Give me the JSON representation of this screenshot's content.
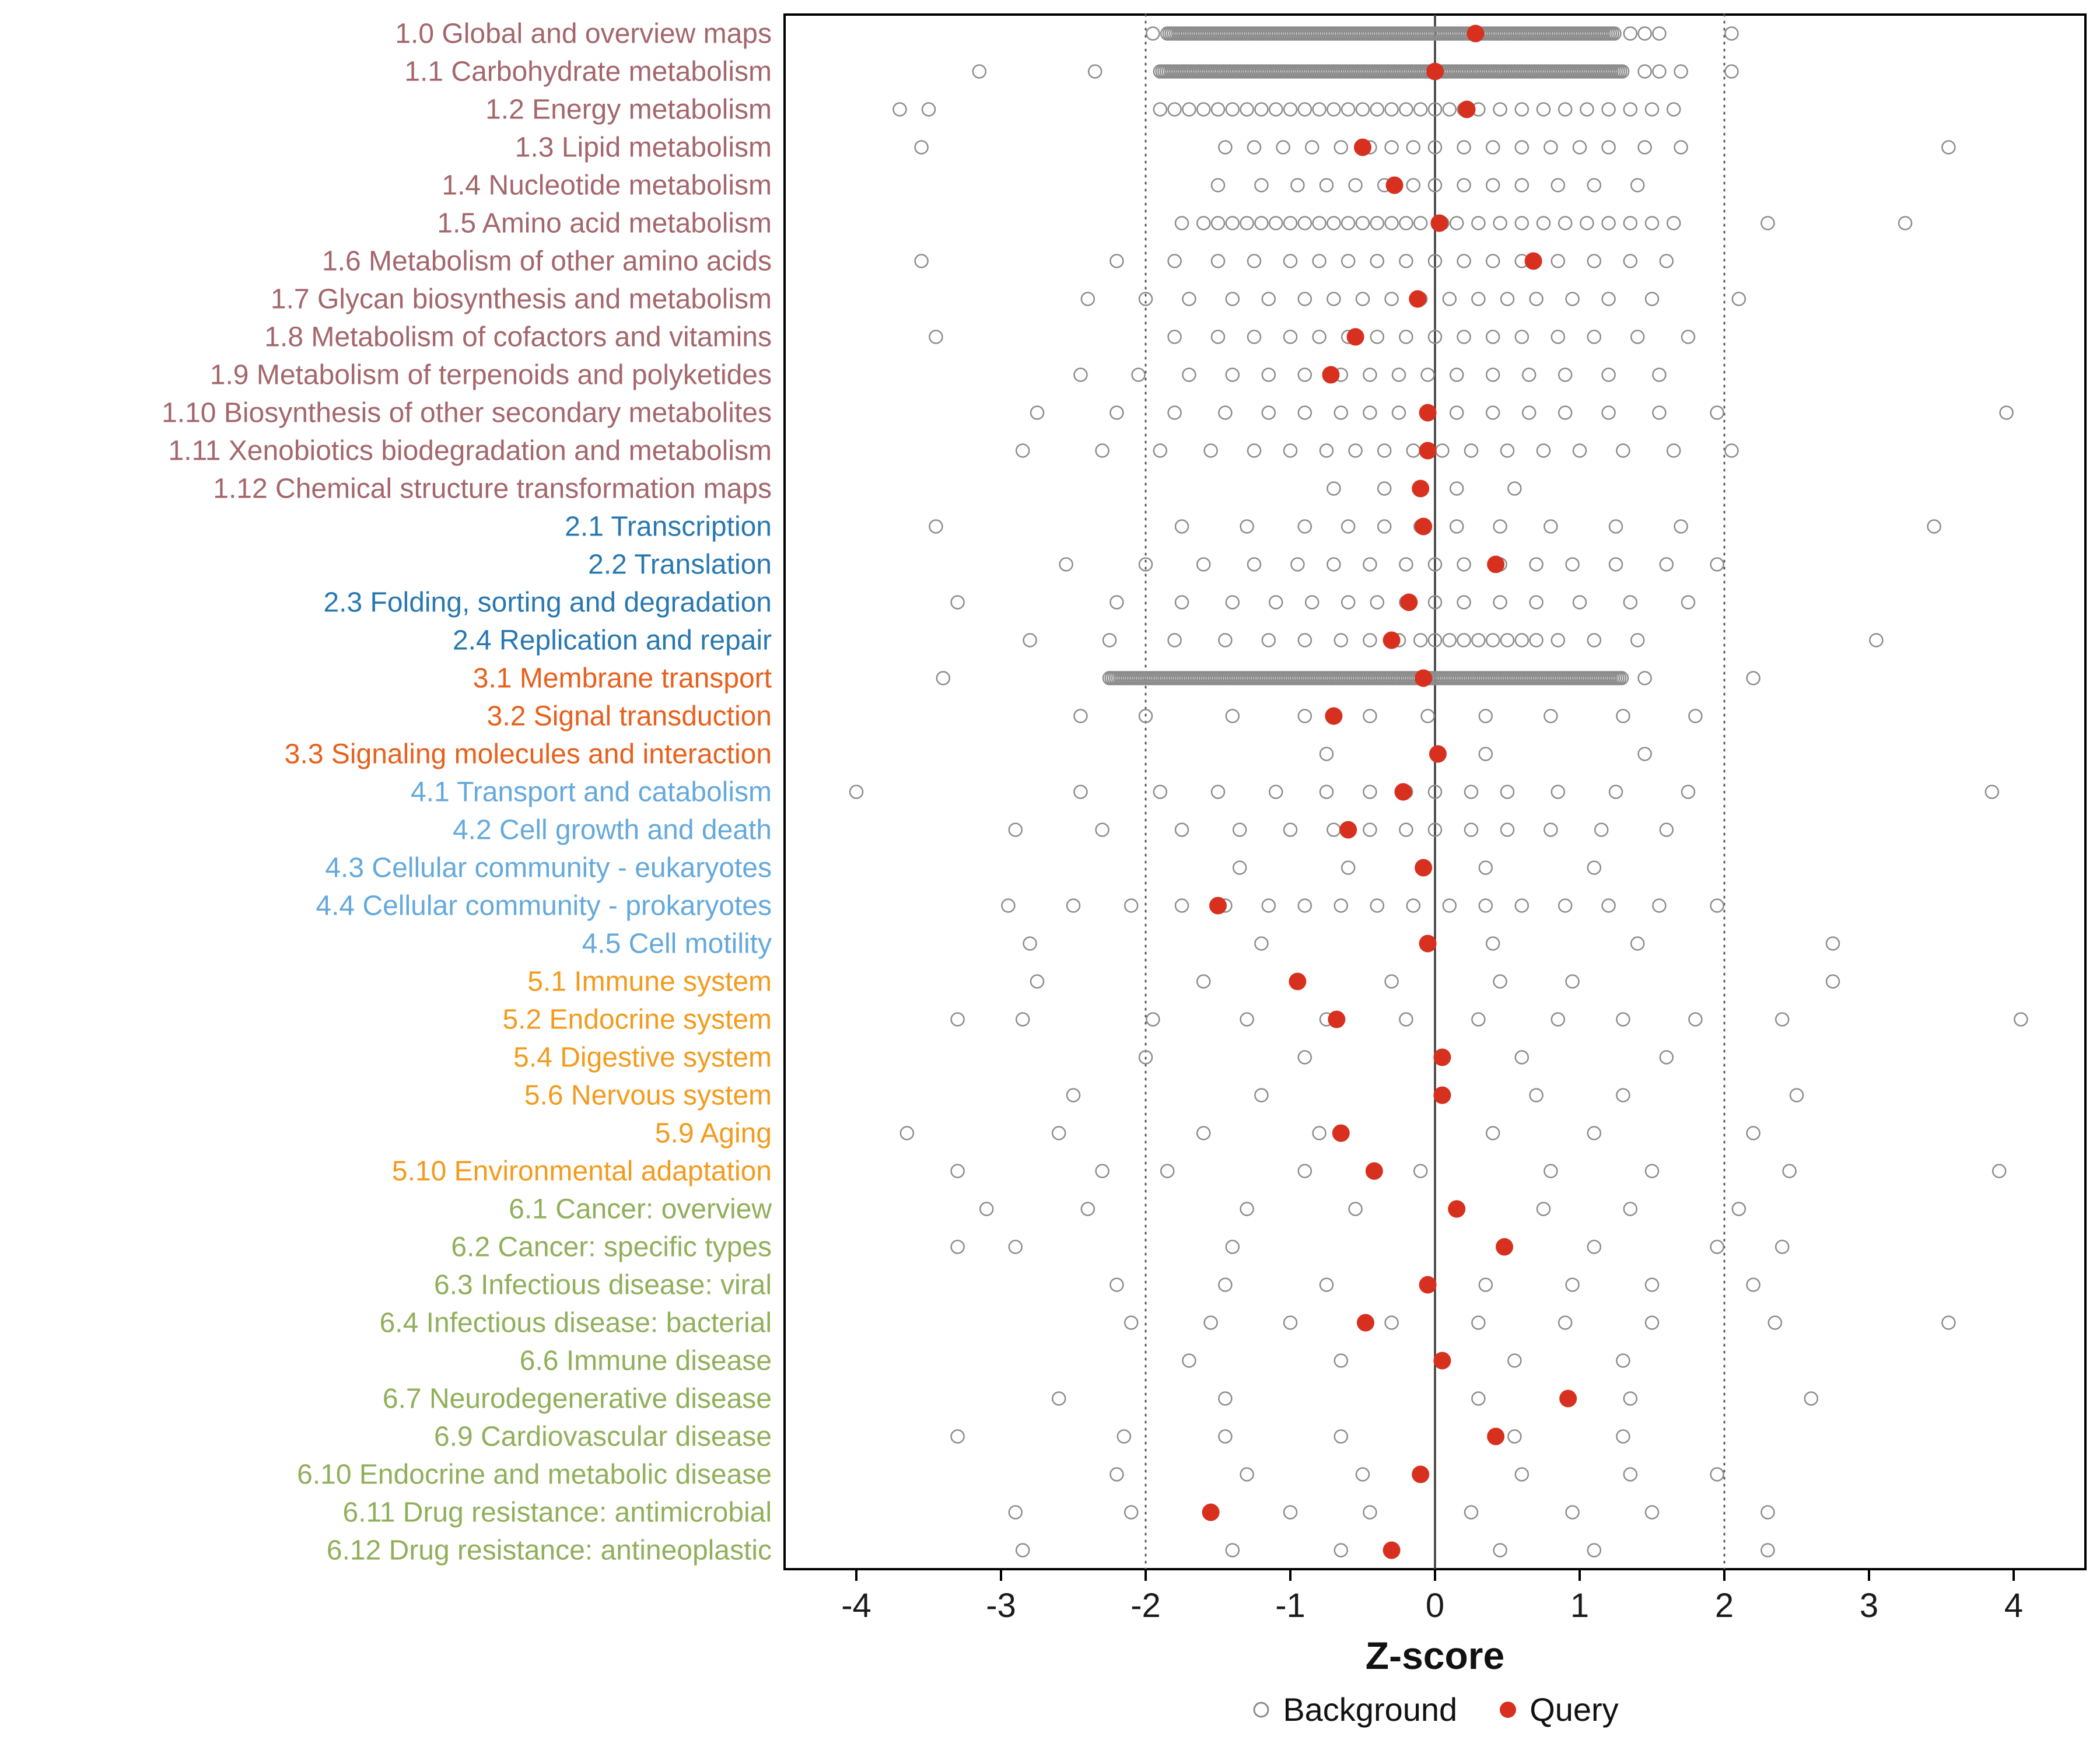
{
  "chart_data": {
    "type": "scatter",
    "title": "",
    "xlabel": "Z-score",
    "x_ticks": [
      -4,
      -3,
      -2,
      -1,
      0,
      1,
      2,
      3,
      4
    ],
    "xlim": [
      -4.5,
      4.5
    ],
    "grid": false,
    "legend_position": "bottom",
    "reference_lines": {
      "solid": 0,
      "dotted": [
        -2,
        2
      ]
    },
    "legend": [
      {
        "label": "Background",
        "type": "open"
      },
      {
        "label": "Query",
        "type": "filled"
      }
    ],
    "colors": {
      "query": "#D7301F",
      "background_stroke": "#8C8C8C",
      "axis_text": "#1a1a1a",
      "groups": {
        "metabolism": "#A4666B",
        "genetic_information_processing": "#2878B0",
        "environmental_information_processing": "#E8601C",
        "cellular_processes": "#64A9DC",
        "organismal_systems": "#F39B1D",
        "human_diseases": "#90AF5A"
      }
    },
    "rows": [
      {
        "label": "1.0 Global and overview maps",
        "group": "metabolism",
        "query": 0.28,
        "bg_band": [
          -1.85,
          1.25
        ],
        "bg": [
          -1.95,
          1.35,
          1.45,
          1.55,
          2.05
        ]
      },
      {
        "label": "1.1 Carbohydrate metabolism",
        "group": "metabolism",
        "query": 0.0,
        "bg_band": [
          -1.9,
          1.3
        ],
        "bg": [
          -3.15,
          -2.35,
          1.45,
          1.55,
          1.7,
          2.05
        ]
      },
      {
        "label": "1.2 Energy metabolism",
        "group": "metabolism",
        "query": 0.22,
        "bg": [
          -3.7,
          -3.5,
          -1.9,
          -1.8,
          -1.7,
          -1.6,
          -1.5,
          -1.4,
          -1.3,
          -1.2,
          -1.1,
          -1.0,
          -0.9,
          -0.8,
          -0.7,
          -0.6,
          -0.5,
          -0.4,
          -0.3,
          -0.2,
          -0.1,
          0.0,
          0.1,
          0.2,
          0.3,
          0.45,
          0.6,
          0.75,
          0.9,
          1.05,
          1.2,
          1.35,
          1.5,
          1.65
        ]
      },
      {
        "label": "1.3 Lipid metabolism",
        "group": "metabolism",
        "query": -0.5,
        "bg": [
          -3.55,
          -1.45,
          -1.25,
          -1.05,
          -0.85,
          -0.65,
          -0.45,
          -0.3,
          -0.15,
          0.0,
          0.2,
          0.4,
          0.6,
          0.8,
          1.0,
          1.2,
          1.45,
          1.7,
          3.55
        ]
      },
      {
        "label": "1.4 Nucleotide metabolism",
        "group": "metabolism",
        "query": -0.28,
        "bg": [
          -1.5,
          -1.2,
          -0.95,
          -0.75,
          -0.55,
          -0.35,
          -0.15,
          0.0,
          0.2,
          0.4,
          0.6,
          0.85,
          1.1,
          1.4
        ]
      },
      {
        "label": "1.5 Amino acid metabolism",
        "group": "metabolism",
        "query": 0.03,
        "bg": [
          -1.75,
          -1.6,
          -1.5,
          -1.4,
          -1.3,
          -1.2,
          -1.1,
          -1.0,
          -0.9,
          -0.8,
          -0.7,
          -0.6,
          -0.5,
          -0.4,
          -0.3,
          -0.2,
          -0.1,
          0.05,
          0.15,
          0.3,
          0.45,
          0.6,
          0.75,
          0.9,
          1.05,
          1.2,
          1.35,
          1.5,
          1.65,
          2.3,
          3.25
        ]
      },
      {
        "label": "1.6 Metabolism of other amino acids",
        "group": "metabolism",
        "query": 0.68,
        "bg": [
          -3.55,
          -2.2,
          -1.8,
          -1.5,
          -1.25,
          -1.0,
          -0.8,
          -0.6,
          -0.4,
          -0.2,
          0.0,
          0.2,
          0.4,
          0.6,
          0.85,
          1.1,
          1.35,
          1.6
        ]
      },
      {
        "label": "1.7 Glycan biosynthesis and metabolism",
        "group": "metabolism",
        "query": -0.12,
        "bg": [
          -2.4,
          -2.0,
          -1.7,
          -1.4,
          -1.15,
          -0.9,
          -0.7,
          -0.5,
          -0.3,
          -0.1,
          0.1,
          0.3,
          0.5,
          0.7,
          0.95,
          1.2,
          1.5,
          2.1
        ]
      },
      {
        "label": "1.8 Metabolism of cofactors and vitamins",
        "group": "metabolism",
        "query": -0.55,
        "bg": [
          -3.45,
          -1.8,
          -1.5,
          -1.25,
          -1.0,
          -0.8,
          -0.6,
          -0.4,
          -0.2,
          0.0,
          0.2,
          0.4,
          0.6,
          0.85,
          1.1,
          1.4,
          1.75
        ]
      },
      {
        "label": "1.9 Metabolism of terpenoids and polyketides",
        "group": "metabolism",
        "query": -0.72,
        "bg": [
          -2.45,
          -2.05,
          -1.7,
          -1.4,
          -1.15,
          -0.9,
          -0.65,
          -0.45,
          -0.25,
          -0.05,
          0.15,
          0.4,
          0.65,
          0.9,
          1.2,
          1.55
        ]
      },
      {
        "label": "1.10 Biosynthesis of other secondary metabolites",
        "group": "metabolism",
        "query": -0.05,
        "bg": [
          -2.75,
          -2.2,
          -1.8,
          -1.45,
          -1.15,
          -0.9,
          -0.65,
          -0.45,
          -0.25,
          -0.05,
          0.15,
          0.4,
          0.65,
          0.9,
          1.2,
          1.55,
          1.95,
          3.95
        ]
      },
      {
        "label": "1.11 Xenobiotics biodegradation and metabolism",
        "group": "metabolism",
        "query": -0.05,
        "bg": [
          -2.85,
          -2.3,
          -1.9,
          -1.55,
          -1.25,
          -1.0,
          -0.75,
          -0.55,
          -0.35,
          -0.15,
          0.05,
          0.25,
          0.5,
          0.75,
          1.0,
          1.3,
          1.65,
          2.05
        ]
      },
      {
        "label": "1.12 Chemical structure transformation maps",
        "group": "metabolism",
        "query": -0.1,
        "bg": [
          -0.7,
          -0.35,
          0.15,
          0.55
        ]
      },
      {
        "label": "2.1 Transcription",
        "group": "genetic_information_processing",
        "query": -0.08,
        "bg": [
          -3.45,
          -1.75,
          -1.3,
          -0.9,
          -0.6,
          -0.35,
          -0.1,
          0.15,
          0.45,
          0.8,
          1.25,
          1.7,
          3.45
        ]
      },
      {
        "label": "2.2 Translation",
        "group": "genetic_information_processing",
        "query": 0.42,
        "bg": [
          -2.55,
          -2.0,
          -1.6,
          -1.25,
          -0.95,
          -0.7,
          -0.45,
          -0.2,
          0.0,
          0.2,
          0.45,
          0.7,
          0.95,
          1.25,
          1.6,
          1.95
        ]
      },
      {
        "label": "2.3 Folding, sorting and degradation",
        "group": "genetic_information_processing",
        "query": -0.18,
        "bg": [
          -3.3,
          -2.2,
          -1.75,
          -1.4,
          -1.1,
          -0.85,
          -0.6,
          -0.4,
          -0.2,
          0.0,
          0.2,
          0.45,
          0.7,
          1.0,
          1.35,
          1.75
        ]
      },
      {
        "label": "2.4 Replication and repair",
        "group": "genetic_information_processing",
        "query": -0.3,
        "bg": [
          -2.8,
          -2.25,
          -1.8,
          -1.45,
          -1.15,
          -0.9,
          -0.65,
          -0.45,
          -0.25,
          -0.1,
          0.0,
          0.1,
          0.2,
          0.3,
          0.4,
          0.5,
          0.6,
          0.7,
          0.85,
          1.1,
          1.4,
          3.05
        ]
      },
      {
        "label": "3.1 Membrane transport",
        "group": "environmental_information_processing",
        "query": -0.08,
        "bg_band": [
          -2.25,
          1.3
        ],
        "bg": [
          -3.4,
          1.45,
          2.2
        ]
      },
      {
        "label": "3.2 Signal transduction",
        "group": "environmental_information_processing",
        "query": -0.7,
        "bg": [
          -2.45,
          -2.0,
          -1.4,
          -0.9,
          -0.45,
          -0.05,
          0.35,
          0.8,
          1.3,
          1.8
        ]
      },
      {
        "label": "3.3 Signaling molecules and interaction",
        "group": "environmental_information_processing",
        "query": 0.02,
        "bg": [
          -0.75,
          0.35,
          1.45
        ]
      },
      {
        "label": "4.1 Transport and catabolism",
        "group": "cellular_processes",
        "query": -0.22,
        "bg": [
          -4.0,
          -2.45,
          -1.9,
          -1.5,
          -1.1,
          -0.75,
          -0.45,
          -0.2,
          0.0,
          0.25,
          0.5,
          0.85,
          1.25,
          1.75,
          3.85
        ]
      },
      {
        "label": "4.2 Cell growth and death",
        "group": "cellular_processes",
        "query": -0.6,
        "bg": [
          -2.9,
          -2.3,
          -1.75,
          -1.35,
          -1.0,
          -0.7,
          -0.45,
          -0.2,
          0.0,
          0.25,
          0.5,
          0.8,
          1.15,
          1.6
        ]
      },
      {
        "label": "4.3 Cellular community - eukaryotes",
        "group": "cellular_processes",
        "query": -0.08,
        "bg": [
          -1.35,
          -0.6,
          0.35,
          1.1
        ]
      },
      {
        "label": "4.4 Cellular community - prokaryotes",
        "group": "cellular_processes",
        "query": -1.5,
        "bg": [
          -2.95,
          -2.5,
          -2.1,
          -1.75,
          -1.45,
          -1.15,
          -0.9,
          -0.65,
          -0.4,
          -0.15,
          0.1,
          0.35,
          0.6,
          0.9,
          1.2,
          1.55,
          1.95
        ]
      },
      {
        "label": "4.5 Cell motility",
        "group": "cellular_processes",
        "query": -0.05,
        "bg": [
          -2.8,
          -1.2,
          0.4,
          1.4,
          2.75
        ]
      },
      {
        "label": "5.1 Immune system",
        "group": "organismal_systems",
        "query": -0.95,
        "bg": [
          -2.75,
          -1.6,
          -0.3,
          0.45,
          0.95,
          2.75
        ]
      },
      {
        "label": "5.2 Endocrine system",
        "group": "organismal_systems",
        "query": -0.68,
        "bg": [
          -3.3,
          -2.85,
          -1.95,
          -1.3,
          -0.75,
          -0.2,
          0.3,
          0.85,
          1.3,
          1.8,
          2.4,
          4.05
        ]
      },
      {
        "label": "5.4 Digestive system",
        "group": "organismal_systems",
        "query": 0.05,
        "bg": [
          -2.0,
          -0.9,
          0.6,
          1.6
        ]
      },
      {
        "label": "5.6 Nervous system",
        "group": "organismal_systems",
        "query": 0.05,
        "bg": [
          -2.5,
          -1.2,
          0.7,
          1.3,
          2.5
        ]
      },
      {
        "label": "5.9 Aging",
        "group": "organismal_systems",
        "query": -0.65,
        "bg": [
          -3.65,
          -2.6,
          -1.6,
          -0.8,
          0.4,
          1.1,
          2.2
        ]
      },
      {
        "label": "5.10 Environmental adaptation",
        "group": "organismal_systems",
        "query": -0.42,
        "bg": [
          -3.3,
          -2.3,
          -1.85,
          -0.9,
          -0.1,
          0.8,
          1.5,
          2.45,
          3.9
        ]
      },
      {
        "label": "6.1 Cancer: overview",
        "group": "human_diseases",
        "query": 0.15,
        "bg": [
          -3.1,
          -2.4,
          -1.3,
          -0.55,
          0.75,
          1.35,
          2.1
        ]
      },
      {
        "label": "6.2 Cancer: specific types",
        "group": "human_diseases",
        "query": 0.48,
        "bg": [
          -3.3,
          -2.9,
          -1.4,
          1.1,
          1.95,
          2.4
        ]
      },
      {
        "label": "6.3 Infectious disease: viral",
        "group": "human_diseases",
        "query": -0.05,
        "bg": [
          -2.2,
          -1.45,
          -0.75,
          0.35,
          0.95,
          1.5,
          2.2
        ]
      },
      {
        "label": "6.4 Infectious disease: bacterial",
        "group": "human_diseases",
        "query": -0.48,
        "bg": [
          -2.1,
          -1.55,
          -1.0,
          -0.3,
          0.3,
          0.9,
          1.5,
          2.35,
          3.55
        ]
      },
      {
        "label": "6.6 Immune disease",
        "group": "human_diseases",
        "query": 0.05,
        "bg": [
          -1.7,
          -0.65,
          0.55,
          1.3
        ]
      },
      {
        "label": "6.7 Neurodegenerative disease",
        "group": "human_diseases",
        "query": 0.92,
        "bg": [
          -2.6,
          -1.45,
          0.3,
          1.35,
          2.6
        ]
      },
      {
        "label": "6.9 Cardiovascular disease",
        "group": "human_diseases",
        "query": 0.42,
        "bg": [
          -3.3,
          -2.15,
          -1.45,
          -0.65,
          0.55,
          1.3
        ]
      },
      {
        "label": "6.10 Endocrine and metabolic disease",
        "group": "human_diseases",
        "query": -0.1,
        "bg": [
          -2.2,
          -1.3,
          -0.5,
          0.6,
          1.35,
          1.95
        ]
      },
      {
        "label": "6.11 Drug resistance: antimicrobial",
        "group": "human_diseases",
        "query": -1.55,
        "bg": [
          -2.9,
          -2.1,
          -1.0,
          -0.45,
          0.25,
          0.95,
          1.5,
          2.3
        ]
      },
      {
        "label": "6.12 Drug resistance: antineoplastic",
        "group": "human_diseases",
        "query": -0.3,
        "bg": [
          -2.85,
          -1.4,
          -0.65,
          0.45,
          1.1,
          2.3
        ]
      }
    ]
  }
}
